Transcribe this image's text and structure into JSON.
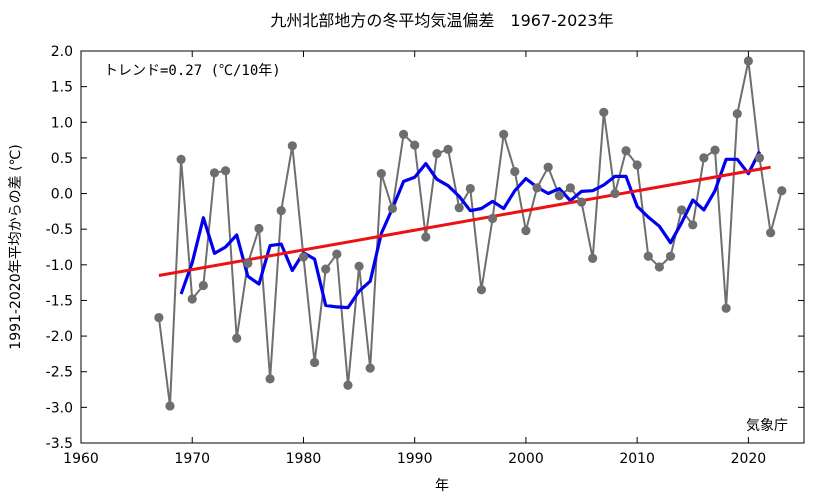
{
  "chart_data": {
    "type": "line",
    "title": "九州北部地方の冬平均気温偏差　1967-2023年",
    "xlabel": "年",
    "ylabel": "1991-2020年平均からの差 (℃)",
    "trend_text": "トレンド=0.27 (℃/10年)",
    "source": "気象庁",
    "xlim": [
      1960,
      2025
    ],
    "ylim": [
      -3.5,
      2.0
    ],
    "xticks": [
      1960,
      1970,
      1980,
      1990,
      2000,
      2010,
      2020
    ],
    "xtick_labels": [
      "1960",
      "1970",
      "1980",
      "1990",
      "2000",
      "2010",
      "2020"
    ],
    "yticks": [
      2.0,
      1.5,
      1.0,
      0.5,
      0.0,
      -0.5,
      -1.0,
      -1.5,
      -2.0,
      -2.5,
      -3.0,
      -3.5
    ],
    "ytick_labels": [
      "2.0",
      "1.5",
      "1.0",
      "0.5",
      "0.0",
      "-0.5",
      "-1.0",
      "-1.5",
      "-2.0",
      "-2.5",
      "-3.0",
      "-3.5"
    ],
    "grid": false,
    "series": [
      {
        "style": "gray-line-markers",
        "color": "#6e6e6e",
        "x": [
          1967,
          1968,
          1969,
          1970,
          1971,
          1972,
          1973,
          1974,
          1975,
          1976,
          1977,
          1978,
          1979,
          1980,
          1981,
          1982,
          1983,
          1984,
          1985,
          1986,
          1987,
          1988,
          1989,
          1990,
          1991,
          1992,
          1993,
          1994,
          1995,
          1996,
          1997,
          1998,
          1999,
          2000,
          2001,
          2002,
          2003,
          2004,
          2005,
          2006,
          2007,
          2008,
          2009,
          2010,
          2011,
          2012,
          2013,
          2014,
          2015,
          2016,
          2017,
          2018,
          2019,
          2020,
          2021,
          2022,
          2023
        ],
        "y": [
          -1.74,
          -2.98,
          0.48,
          -1.48,
          -1.29,
          0.29,
          0.32,
          -2.03,
          -0.98,
          -0.49,
          -2.6,
          -0.24,
          0.67,
          -0.89,
          -2.37,
          -1.06,
          -0.85,
          -2.69,
          -1.02,
          -2.45,
          0.28,
          -0.21,
          0.83,
          0.68,
          -0.61,
          0.56,
          0.62,
          -0.2,
          0.07,
          -1.35,
          -0.35,
          0.83,
          0.31,
          -0.52,
          0.08,
          0.37,
          -0.03,
          0.08,
          -0.12,
          -0.91,
          1.14,
          0.0,
          0.6,
          0.4,
          -0.88,
          -1.03,
          -0.88,
          -0.23,
          -0.44,
          0.5,
          0.61,
          -1.61,
          1.12,
          1.86,
          0.5,
          -0.55,
          0.04
        ]
      },
      {
        "style": "moving-average",
        "color": "#0000ee",
        "x": [
          1969,
          1970,
          1971,
          1972,
          1973,
          1974,
          1975,
          1976,
          1977,
          1978,
          1979,
          1980,
          1981,
          1982,
          1983,
          1984,
          1985,
          1986,
          1987,
          1988,
          1989,
          1990,
          1991,
          1992,
          1993,
          1994,
          1995,
          1996,
          1997,
          1998,
          1999,
          2000,
          2001,
          2002,
          2003,
          2004,
          2005,
          2006,
          2007,
          2008,
          2009,
          2010,
          2011,
          2012,
          2013,
          2014,
          2015,
          2016,
          2017,
          2018,
          2019,
          2020,
          2021
        ],
        "y": [
          -1.41,
          -0.97,
          -0.34,
          -0.84,
          -0.75,
          -0.58,
          -1.16,
          -1.27,
          -0.73,
          -0.71,
          -1.08,
          -0.83,
          -0.92,
          -1.57,
          -1.59,
          -1.6,
          -1.37,
          -1.23,
          -0.56,
          -0.21,
          0.17,
          0.23,
          0.42,
          0.2,
          0.11,
          -0.04,
          -0.24,
          -0.21,
          -0.11,
          -0.21,
          0.04,
          0.21,
          0.09,
          0.0,
          0.07,
          -0.1,
          0.03,
          0.04,
          0.12,
          0.24,
          0.24,
          -0.18,
          -0.33,
          -0.46,
          -0.69,
          -0.41,
          -0.09,
          -0.23,
          0.04,
          0.48,
          0.48,
          0.28,
          0.59
        ]
      },
      {
        "style": "trend",
        "color": "#ee1111",
        "x": [
          1967,
          2022
        ],
        "y": [
          -1.15,
          0.37
        ]
      }
    ]
  }
}
